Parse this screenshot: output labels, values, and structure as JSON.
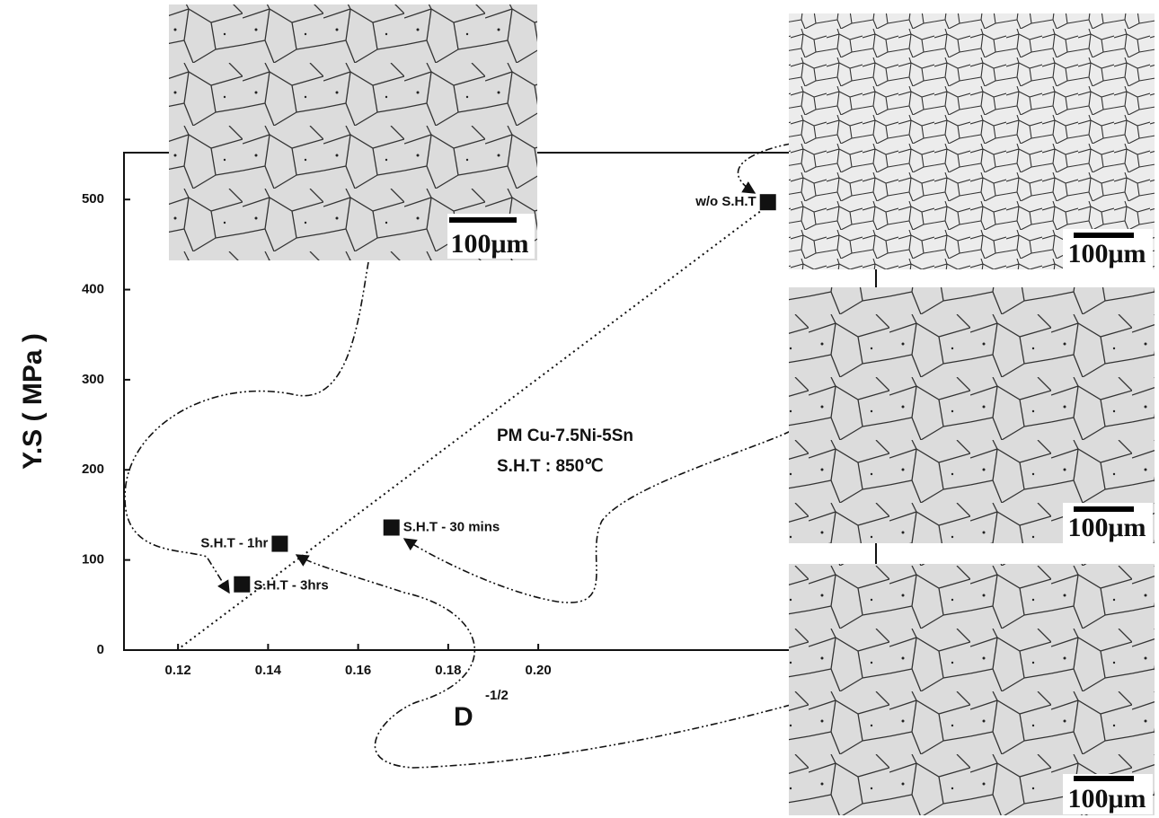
{
  "chart_data": {
    "type": "scatter",
    "y_label": "Y.S ( MPa )",
    "x_label": "D",
    "x_label_sup": "-1/2",
    "annotations": [
      "PM Cu-7.5Ni-5Sn",
      "S.H.T : 850℃"
    ],
    "point_labels": [
      "w/o S.H.T",
      "S.H.T - 30 mins",
      "S.H.T - 1hr",
      "S.H.T - 3hrs"
    ],
    "x": [
      0.251,
      0.1674,
      0.1426,
      0.1342
    ],
    "values": [
      497,
      136,
      118,
      73
    ],
    "color": "#111111",
    "xlim": [
      0.108,
      0.275
    ],
    "ylim": [
      0,
      552
    ],
    "xticks": [
      0.12,
      0.14,
      0.16,
      0.18,
      {
        "value": 0.2,
        "label": "0.20"
      }
    ],
    "yticks": [
      0,
      100,
      200,
      300,
      400,
      500
    ],
    "scale_labels": [
      "100μm",
      "100μm",
      "100μm",
      "100μm"
    ]
  }
}
